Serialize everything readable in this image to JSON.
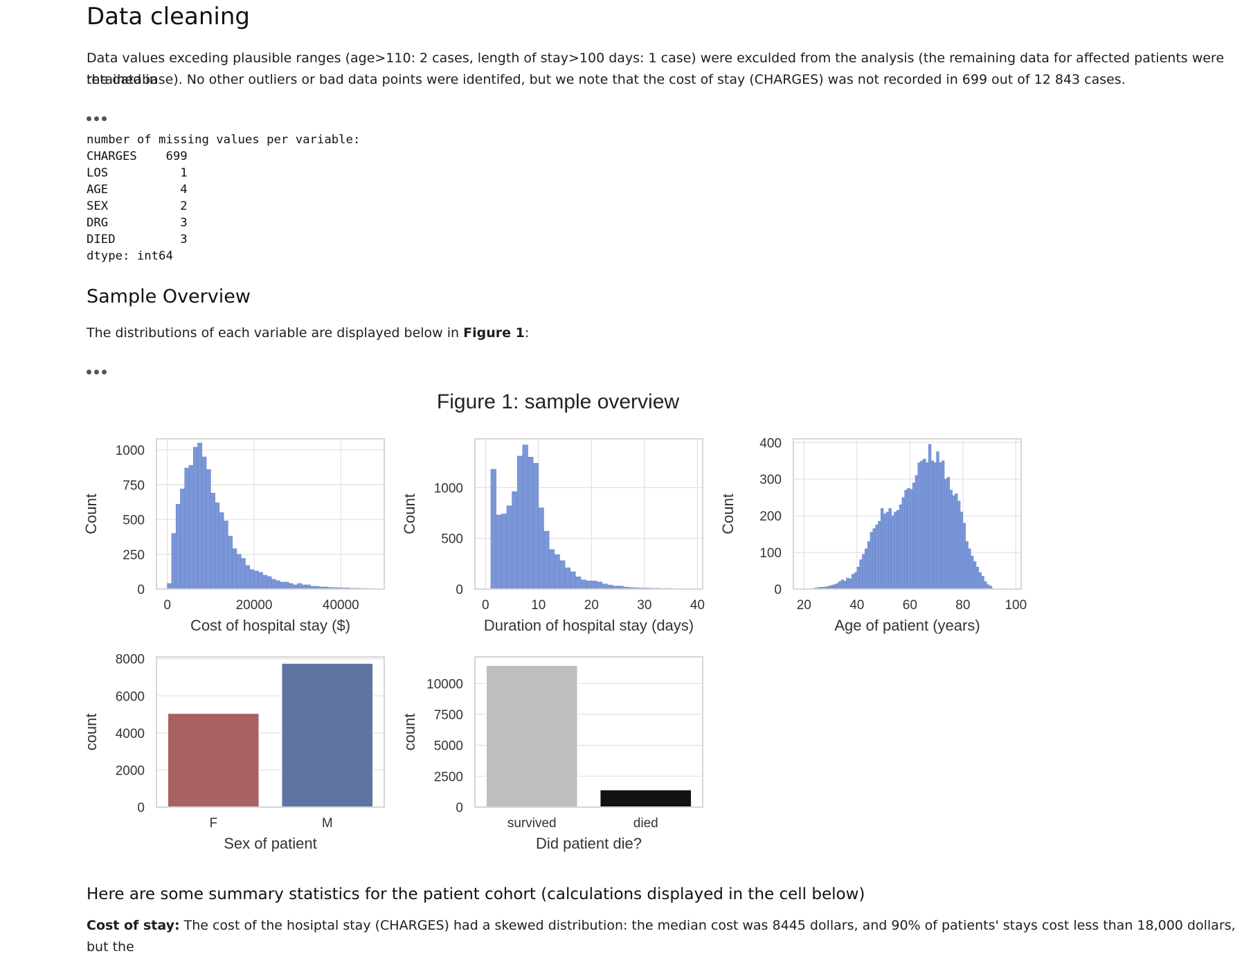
{
  "data_cleaning": {
    "title": "Data cleaning",
    "paragraph_line1": "Data values exceding plausible ranges (age>110: 2 cases, length of stay>100 days: 1 case) were exculded from the analysis (the remaining data for affected patients were retained in",
    "paragraph_line2": "the database). No other outliers or bad data points were identifed, but we note that the cost of stay (CHARGES) was not recorded in 699 out of 12 843 cases."
  },
  "missing_output": {
    "lines": [
      "number of missing values per variable:",
      "CHARGES    699",
      "LOS          1",
      "AGE          4",
      "SEX          2",
      "DRG          3",
      "DIED         3",
      "dtype: int64"
    ]
  },
  "sample_overview": {
    "title": "Sample Overview",
    "intro_prefix": "The distributions of each variable are displayed below in ",
    "intro_bold": "Figure 1",
    "intro_suffix": ":"
  },
  "figure": {
    "suptitle": "Figure 1: sample overview",
    "colors": {
      "hist": "#7b97d8",
      "hist_edge": "#6685cf",
      "female": "#a96160",
      "male": "#5f75a1",
      "survived": "#bebebe",
      "died": "#121212",
      "grid": "#e3e3e3",
      "frame": "#d6d6d6"
    }
  },
  "chart_data": [
    {
      "type": "bar",
      "title": "",
      "xlabel": "Cost of hospital stay ($)",
      "ylabel": "Count",
      "xlim": [
        -2500,
        50000
      ],
      "ylim": [
        0,
        1080
      ],
      "xticks": [
        0,
        20000,
        40000
      ],
      "yticks": [
        0,
        250,
        500,
        750,
        1000
      ],
      "bin_width": 1000,
      "bin_start": 0,
      "values": [
        40,
        400,
        610,
        720,
        870,
        890,
        1020,
        1050,
        950,
        860,
        690,
        620,
        550,
        490,
        380,
        290,
        250,
        220,
        170,
        140,
        130,
        120,
        100,
        90,
        70,
        60,
        50,
        50,
        40,
        30,
        40,
        30,
        30,
        20,
        20,
        15,
        15,
        12,
        10,
        10,
        8,
        8,
        6,
        6,
        5,
        5,
        4,
        4,
        3,
        3
      ]
    },
    {
      "type": "bar",
      "title": "",
      "xlabel": "Duration of hospital stay (days)",
      "ylabel": "Count",
      "xlim": [
        -2,
        41
      ],
      "ylim": [
        0,
        1480
      ],
      "xticks": [
        0,
        10,
        20,
        30,
        40
      ],
      "yticks": [
        0,
        500,
        1000
      ],
      "bin_width": 1,
      "bin_start": 1,
      "values": [
        1180,
        730,
        740,
        820,
        960,
        1310,
        1420,
        1300,
        1240,
        800,
        570,
        390,
        340,
        280,
        210,
        170,
        120,
        90,
        80,
        80,
        70,
        50,
        40,
        30,
        30,
        20,
        15,
        12,
        10,
        10,
        8,
        8,
        6,
        6,
        5,
        5,
        4,
        3,
        3,
        2
      ]
    },
    {
      "type": "bar",
      "title": "",
      "xlabel": "Age of patient (years)",
      "ylabel": "Count",
      "xlim": [
        16,
        102
      ],
      "ylim": [
        0,
        410
      ],
      "xticks": [
        20,
        40,
        60,
        80,
        100
      ],
      "yticks": [
        0,
        100,
        200,
        300,
        400
      ],
      "bin_width": 1,
      "bin_start": 24,
      "values": [
        3,
        4,
        5,
        5,
        6,
        8,
        10,
        12,
        15,
        20,
        25,
        22,
        30,
        28,
        40,
        45,
        60,
        80,
        95,
        110,
        130,
        155,
        165,
        175,
        185,
        220,
        205,
        210,
        220,
        200,
        210,
        215,
        230,
        250,
        270,
        275,
        272,
        290,
        310,
        345,
        350,
        355,
        345,
        395,
        350,
        345,
        375,
        345,
        350,
        300,
        305,
        270,
        255,
        260,
        240,
        210,
        180,
        130,
        110,
        90,
        75,
        60,
        45,
        35,
        20,
        12,
        8
      ]
    },
    {
      "type": "bar",
      "title": "",
      "xlabel": "Sex of patient",
      "ylabel": "count",
      "categories": [
        "F",
        "M"
      ],
      "values": [
        5050,
        7750
      ],
      "ylim": [
        0,
        8100
      ],
      "yticks": [
        0,
        2000,
        4000,
        6000,
        8000
      ]
    },
    {
      "type": "bar",
      "title": "",
      "xlabel": "Did patient die?",
      "ylabel": "count",
      "categories": [
        "survived",
        "died"
      ],
      "values": [
        11450,
        1390
      ],
      "ylim": [
        0,
        12150
      ],
      "yticks": [
        0,
        2500,
        5000,
        7500,
        10000
      ]
    }
  ],
  "summary": {
    "heading": "Here are some summary statistics for the patient cohort (calculations displayed in the cell below)",
    "cost_label": "Cost of stay:",
    "cost_text": " The cost of the hosiptal stay (CHARGES) had a skewed distribution: the median cost was 8445 dollars, and 90% of patients' stays cost less than 18,000 dollars, but the"
  }
}
